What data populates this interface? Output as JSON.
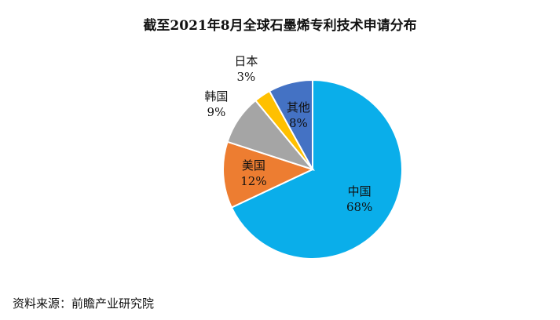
{
  "chart_data": {
    "type": "pie",
    "title": "截至2021年8月全球石墨烯专利技术申请分布",
    "slices": [
      {
        "label": "中国",
        "value": 68,
        "value_label": "68%",
        "color": "#0aaeea"
      },
      {
        "label": "美国",
        "value": 12,
        "value_label": "12%",
        "color": "#ed7d31"
      },
      {
        "label": "韩国",
        "value": 9,
        "value_label": "9%",
        "color": "#a5a5a5"
      },
      {
        "label": "日本",
        "value": 3,
        "value_label": "3%",
        "color": "#ffc000"
      },
      {
        "label": "其他",
        "value": 8,
        "value_label": "8%",
        "color": "#4472c4"
      }
    ],
    "legend": "none"
  },
  "footer": {
    "source": "资料来源：前瞻产业研究院"
  }
}
